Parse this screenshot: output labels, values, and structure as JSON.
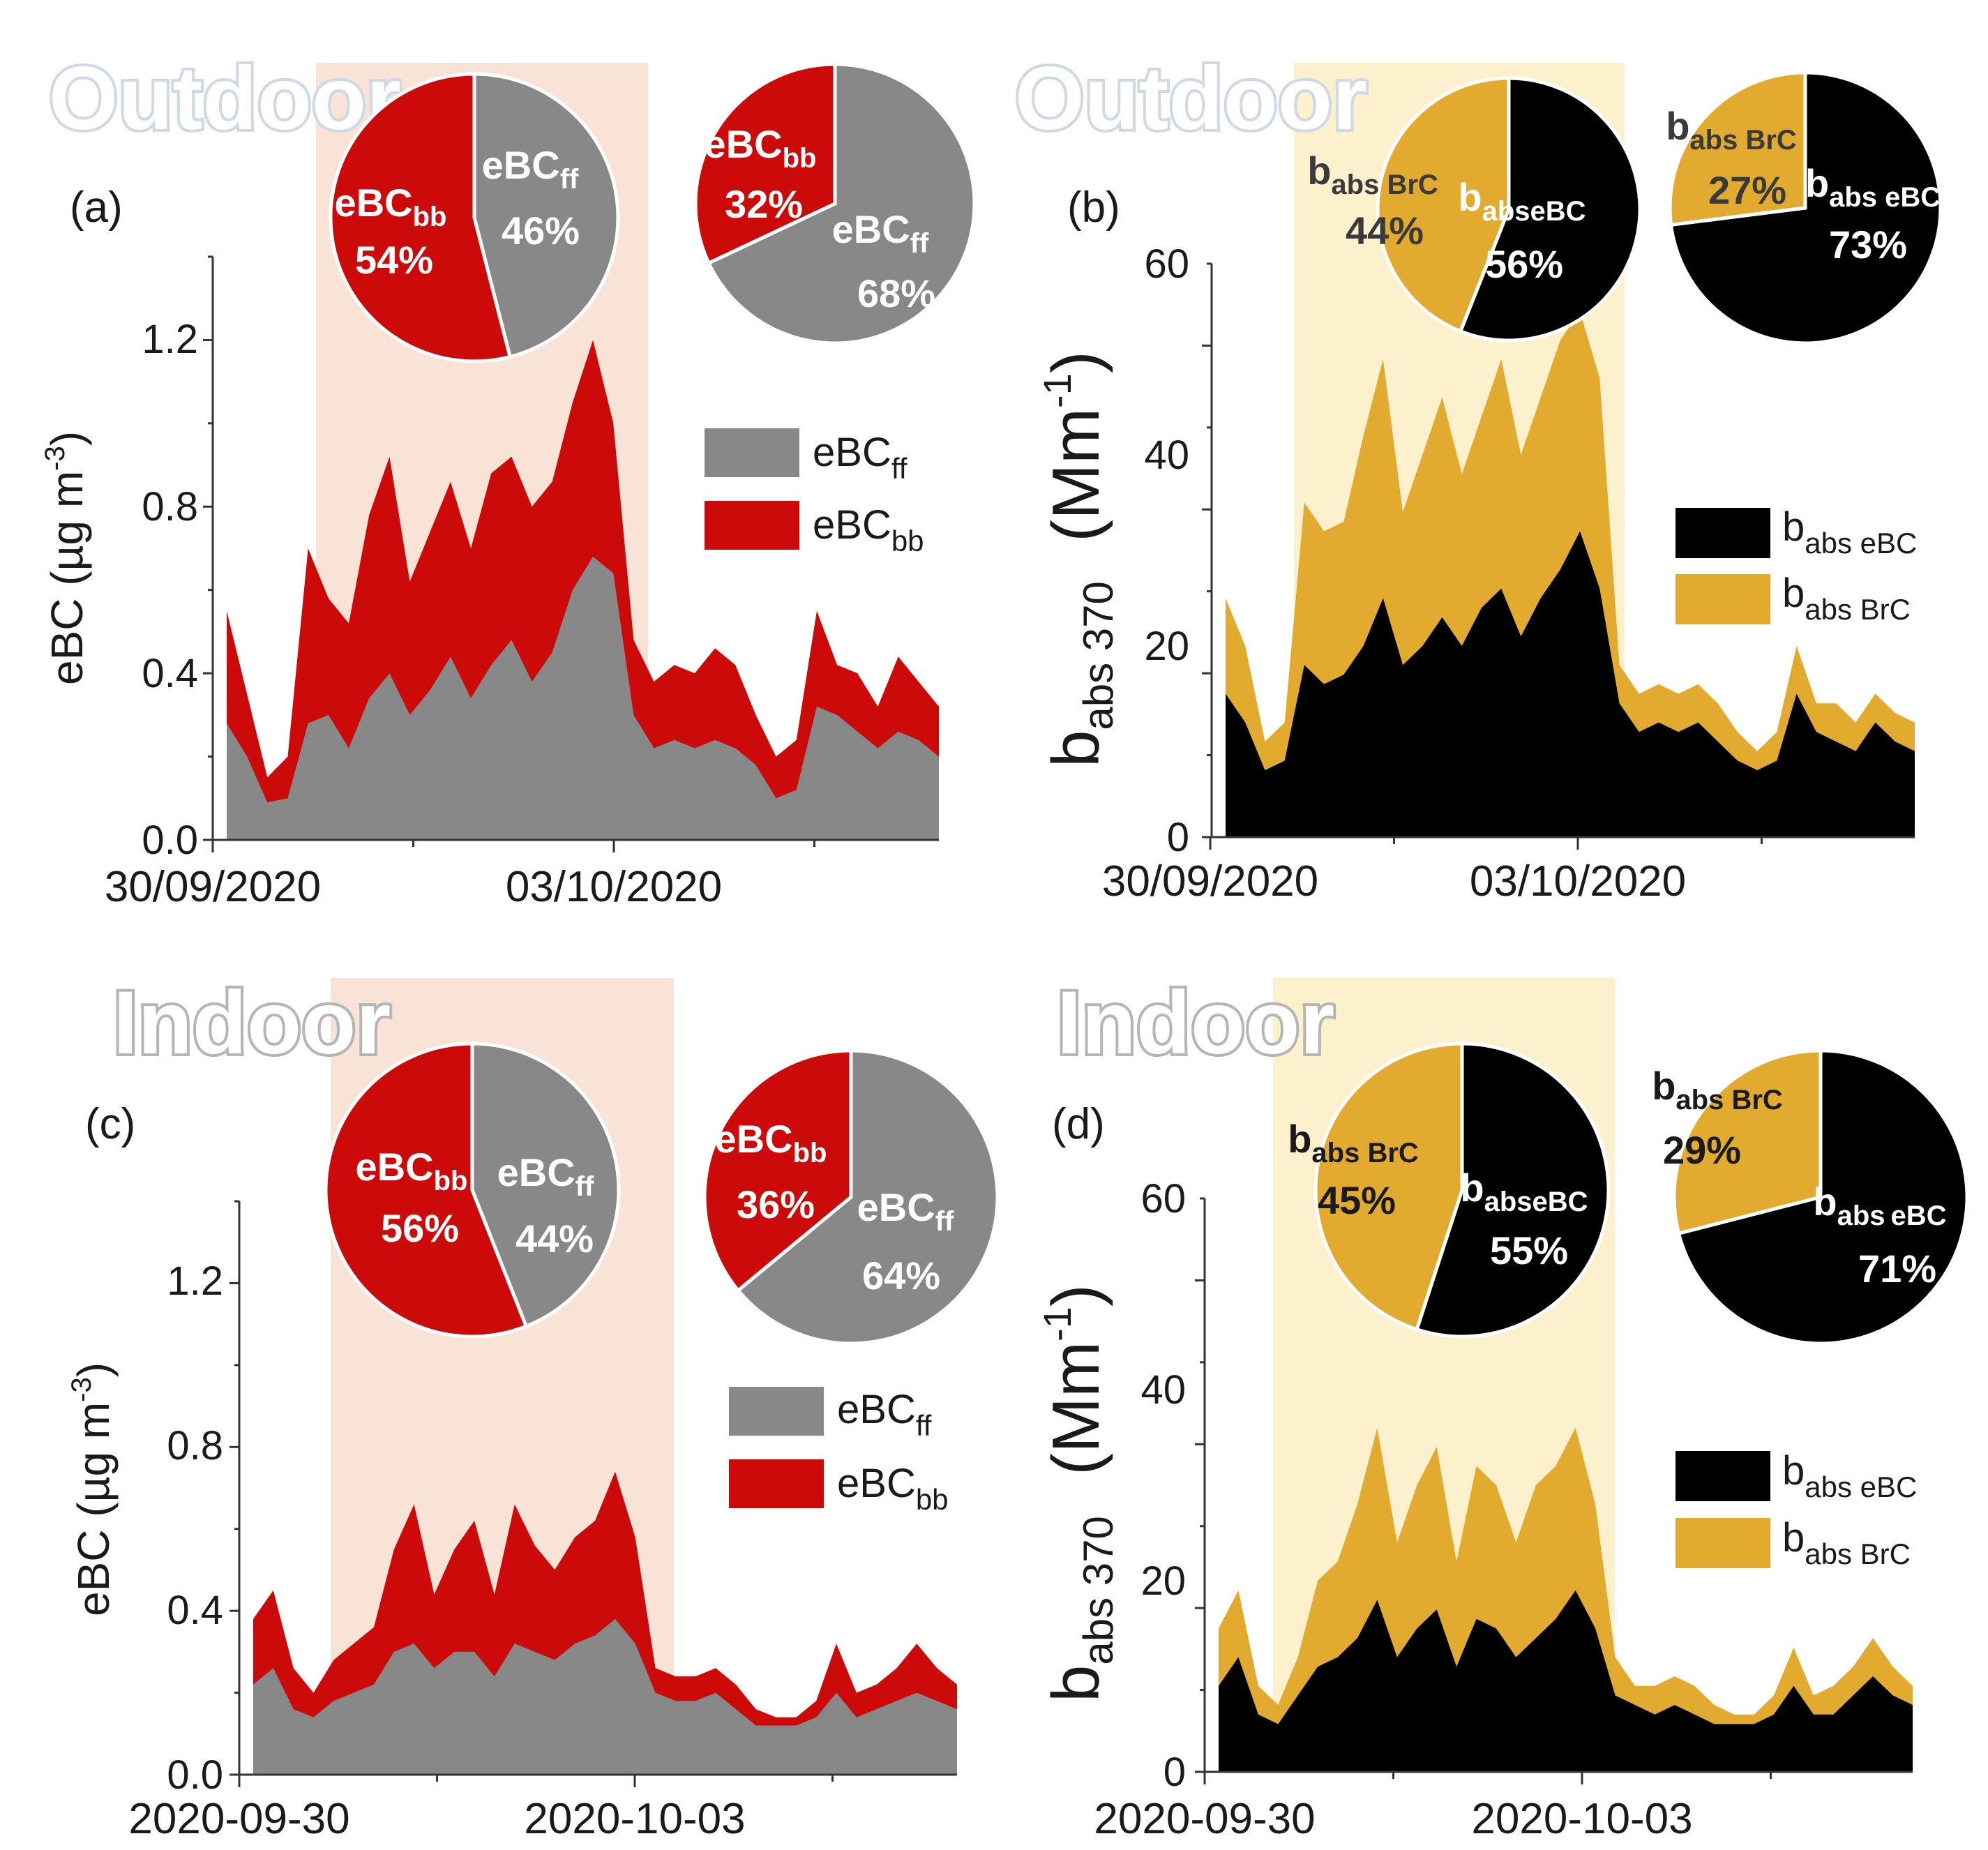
{
  "chart_data": [
    {
      "panel": "(a)",
      "location": "Outdoor",
      "type": "area",
      "ylabel": "eBC (µg m⁻³)",
      "yticks": [
        "0.0",
        "0.4",
        "0.8",
        "1.2"
      ],
      "xticks": [
        "30/09/2020",
        "03/10/2020"
      ],
      "ylim": [
        0,
        1.4
      ],
      "legend": [
        "eBCff",
        "eBCbb"
      ],
      "pies": [
        {
          "slices": [
            {
              "label": "eBCbb",
              "value": 54,
              "text": "54%"
            },
            {
              "label": "eBCff",
              "value": 46,
              "text": "46%"
            }
          ]
        },
        {
          "slices": [
            {
              "label": "eBCbb",
              "value": 32,
              "text": "32%"
            },
            {
              "label": "eBCff",
              "value": 68,
              "text": "68%"
            }
          ]
        }
      ],
      "series": [
        {
          "name": "eBCff",
          "values": [
            0.28,
            0.2,
            0.09,
            0.1,
            0.28,
            0.3,
            0.22,
            0.34,
            0.4,
            0.3,
            0.36,
            0.44,
            0.34,
            0.42,
            0.48,
            0.38,
            0.45,
            0.6,
            0.68,
            0.64,
            0.3,
            0.22,
            0.24,
            0.22,
            0.24,
            0.22,
            0.18,
            0.1,
            0.12,
            0.32,
            0.3,
            0.26,
            0.22,
            0.26,
            0.24,
            0.2
          ]
        },
        {
          "name": "total",
          "values": [
            0.55,
            0.35,
            0.15,
            0.2,
            0.7,
            0.58,
            0.52,
            0.78,
            0.92,
            0.62,
            0.74,
            0.86,
            0.7,
            0.88,
            0.92,
            0.8,
            0.86,
            1.05,
            1.2,
            1.0,
            0.48,
            0.38,
            0.42,
            0.4,
            0.46,
            0.42,
            0.3,
            0.2,
            0.24,
            0.55,
            0.42,
            0.4,
            0.32,
            0.44,
            0.38,
            0.32
          ]
        }
      ]
    },
    {
      "panel": "(b)",
      "location": "Outdoor",
      "type": "area",
      "ylabel": "(Mm⁻¹)",
      "ylabel_main": "b",
      "ylabel_sub": "abs 370",
      "yticks": [
        "0",
        "20",
        "40",
        "60"
      ],
      "xticks": [
        "30/09/2020",
        "03/10/2020"
      ],
      "ylim": [
        0,
        60
      ],
      "legend": [
        "babs eBC",
        "babs BrC"
      ],
      "pies": [
        {
          "slices": [
            {
              "label": "babs BrC",
              "value": 44,
              "text": "44%"
            },
            {
              "label": "babseBC",
              "value": 56,
              "text": "56%"
            }
          ]
        },
        {
          "slices": [
            {
              "label": "babs BrC",
              "value": 27,
              "text": "27%"
            },
            {
              "label": "babs eBC",
              "value": 73,
              "text": "73%"
            }
          ]
        }
      ],
      "series": [
        {
          "name": "babs eBC",
          "values": [
            15,
            12,
            7,
            8,
            18,
            16,
            17,
            20,
            25,
            18,
            20,
            23,
            20,
            24,
            26,
            21,
            25,
            28,
            32,
            26,
            14,
            11,
            12,
            11,
            12,
            10,
            8,
            7,
            8,
            15,
            11,
            10,
            9,
            12,
            10,
            9
          ]
        },
        {
          "name": "total",
          "values": [
            25,
            20,
            10,
            12,
            35,
            32,
            33,
            42,
            50,
            34,
            40,
            46,
            38,
            44,
            50,
            40,
            46,
            52,
            55,
            48,
            18,
            15,
            16,
            15,
            16,
            14,
            11,
            9,
            11,
            20,
            14,
            14,
            12,
            15,
            13,
            12
          ]
        }
      ]
    },
    {
      "panel": "(c)",
      "location": "Indoor",
      "type": "area",
      "ylabel": "eBC (µg m⁻³)",
      "yticks": [
        "0.0",
        "0.4",
        "0.8",
        "1.2"
      ],
      "xticks": [
        "2020-09-30",
        "2020-10-03"
      ],
      "ylim": [
        0,
        1.4
      ],
      "legend": [
        "eBCff",
        "eBCbb"
      ],
      "pies": [
        {
          "slices": [
            {
              "label": "eBCbb",
              "value": 56,
              "text": "56%"
            },
            {
              "label": "eBCff",
              "value": 44,
              "text": "44%"
            }
          ]
        },
        {
          "slices": [
            {
              "label": "eBCbb",
              "value": 36,
              "text": "36%"
            },
            {
              "label": "eBCff",
              "value": 64,
              "text": "64%"
            }
          ]
        }
      ],
      "series": [
        {
          "name": "eBCff",
          "values": [
            0.22,
            0.26,
            0.16,
            0.14,
            0.18,
            0.2,
            0.22,
            0.3,
            0.32,
            0.26,
            0.3,
            0.3,
            0.24,
            0.32,
            0.3,
            0.28,
            0.32,
            0.34,
            0.38,
            0.32,
            0.2,
            0.18,
            0.18,
            0.2,
            0.16,
            0.12,
            0.12,
            0.12,
            0.14,
            0.2,
            0.14,
            0.16,
            0.18,
            0.2,
            0.18,
            0.16
          ]
        },
        {
          "name": "total",
          "values": [
            0.38,
            0.45,
            0.26,
            0.2,
            0.28,
            0.32,
            0.36,
            0.55,
            0.66,
            0.44,
            0.55,
            0.62,
            0.44,
            0.66,
            0.56,
            0.5,
            0.58,
            0.62,
            0.74,
            0.58,
            0.26,
            0.24,
            0.24,
            0.26,
            0.22,
            0.16,
            0.14,
            0.14,
            0.18,
            0.32,
            0.2,
            0.22,
            0.26,
            0.32,
            0.26,
            0.22
          ]
        }
      ]
    },
    {
      "panel": "(d)",
      "location": "Indoor",
      "type": "area",
      "ylabel": "(Mm⁻¹)",
      "ylabel_main": "b",
      "ylabel_sub": "abs 370",
      "yticks": [
        "0",
        "20",
        "40",
        "60"
      ],
      "xticks": [
        "2020-09-30",
        "2020-10-03"
      ],
      "ylim": [
        0,
        60
      ],
      "legend": [
        "babs eBC",
        "babs BrC"
      ],
      "pies": [
        {
          "slices": [
            {
              "label": "babs BrC",
              "value": 45,
              "text": "45%"
            },
            {
              "label": "babseBC",
              "value": 55,
              "text": "55%"
            }
          ]
        },
        {
          "slices": [
            {
              "label": "babs BrC",
              "value": 29,
              "text": "29%"
            },
            {
              "label": "babseBC",
              "value": 71,
              "text": "71%"
            }
          ]
        }
      ],
      "series": [
        {
          "name": "babs eBC",
          "values": [
            9,
            12,
            6,
            5,
            8,
            11,
            12,
            14,
            18,
            12,
            15,
            17,
            11,
            16,
            15,
            12,
            14,
            16,
            19,
            15,
            8,
            7,
            6,
            7,
            6,
            5,
            5,
            5,
            6,
            9,
            6,
            6,
            8,
            10,
            8,
            7
          ]
        },
        {
          "name": "total",
          "values": [
            15,
            19,
            9,
            7,
            12,
            20,
            22,
            28,
            36,
            24,
            30,
            34,
            22,
            32,
            30,
            24,
            30,
            32,
            36,
            28,
            12,
            9,
            9,
            10,
            9,
            7,
            6,
            6,
            8,
            13,
            8,
            9,
            11,
            14,
            11,
            9
          ]
        }
      ]
    }
  ],
  "text": {
    "outdoor": "Outdoor",
    "indoor": "Indoor",
    "legend_ebc": "eBC",
    "legend_ff_sub": "ff",
    "legend_bb_sub": "bb",
    "legend_b": "b",
    "legend_abs_ebc": "abs eBC",
    "legend_abs_brc": "abs BrC",
    "ylabel_ebc": "eBC (µg m",
    "ylabel_ebc_exp": "-3",
    "ylabel_ebc_close": ")",
    "ylabel_b": "b",
    "ylabel_b_sub": "abs 370",
    "ylabel_units": "(Mm",
    "ylabel_units_exp": "-1",
    "ylabel_units_close": ")",
    "pie_ebc": "eBC",
    "pie_bb_sub": "bb",
    "pie_ff_sub": "ff",
    "pie_b": "b",
    "pie_abs_brc_sub": "abs BrC",
    "pie_abs_ebc_sub": "abseBC",
    "pie_abs_ebc_sub_spaced": "abs eBC",
    "pie_abs_ebc_sub_dot": "abs eBC"
  },
  "colors": {
    "ff_grey": "#888888",
    "bb_red": "#cc0a0a",
    "ebc_black": "#000000",
    "brc_gold": "#e2aa2e",
    "shade_red": "#f9e2d6",
    "shade_gold": "#fdf0cc",
    "title_outline": "#cfd9e6",
    "indoor_shadow": "#b5b5b5"
  }
}
